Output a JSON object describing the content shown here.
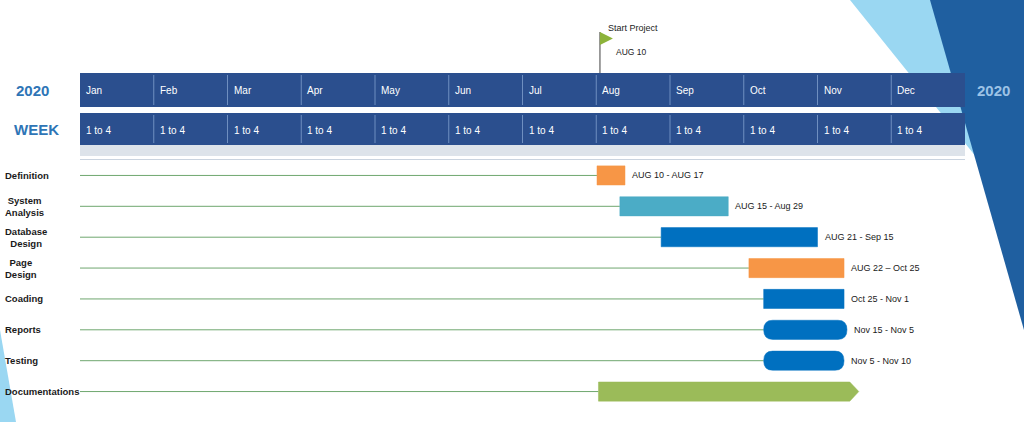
{
  "chart_data": {
    "type": "gantt",
    "year_labels": [
      "2020",
      "2020"
    ],
    "week_title": "WEEK",
    "xlim": [
      0,
      12
    ],
    "xticks": [
      {
        "value": 0,
        "label": "Jan"
      },
      {
        "value": 1,
        "label": "Feb"
      },
      {
        "value": 2,
        "label": "Mar"
      },
      {
        "value": 3,
        "label": "Apr"
      },
      {
        "value": 4,
        "label": "May"
      },
      {
        "value": 5,
        "label": "Jun"
      },
      {
        "value": 6,
        "label": "Jul"
      },
      {
        "value": 7,
        "label": "Aug"
      },
      {
        "value": 8,
        "label": "Sep"
      },
      {
        "value": 9,
        "label": "Oct"
      },
      {
        "value": 10,
        "label": "Nov"
      },
      {
        "value": 11,
        "label": "Dec"
      }
    ],
    "week_labels": [
      "1 to 4",
      "1 to 4",
      "1 to 4",
      "1 to 4",
      "1 to 4",
      "1 to 4",
      "1 to 4",
      "1 to 4",
      "1 to 4",
      "1 to 4",
      "1 to 4",
      "1 to 4"
    ],
    "milestone": {
      "label": "Start Project",
      "date": "AUG 10",
      "x": 7.05
    },
    "grid": false,
    "series": [
      {
        "name": "Definition",
        "color": "#f79646",
        "start": 7.01,
        "end": 7.39,
        "label": "AUG 10 - AUG 17",
        "marker": "rect"
      },
      {
        "name": "System Analysis",
        "color": "#4bacc6",
        "start": 7.32,
        "end": 8.79,
        "label": "AUG 15 - Aug 29",
        "marker": "rect"
      },
      {
        "name": "Database Design",
        "color": "#0070c0",
        "start": 7.88,
        "end": 10.0,
        "label": "AUG 21 - Sep 15",
        "marker": "rect"
      },
      {
        "name": "Page Design",
        "color": "#f79646",
        "start": 9.07,
        "end": 10.36,
        "label": "AUG 22 – Oct 25",
        "marker": "rect"
      },
      {
        "name": "Coading",
        "color": "#0070c0",
        "start": 9.27,
        "end": 10.36,
        "label": "Oct 25 - Nov 1",
        "marker": "rect"
      },
      {
        "name": "Reports",
        "color": "#0070c0",
        "start": 9.27,
        "end": 10.4,
        "label": "Nov 15 - Nov 5",
        "marker": "rounded"
      },
      {
        "name": "Testing",
        "color": "#0070c0",
        "start": 9.27,
        "end": 10.36,
        "label": "Nov 5 - Nov 10",
        "marker": "rounded"
      },
      {
        "name": "Documentations",
        "color": "#9bbb59",
        "start": 7.03,
        "end": 10.56,
        "marker": "arrow"
      }
    ]
  }
}
